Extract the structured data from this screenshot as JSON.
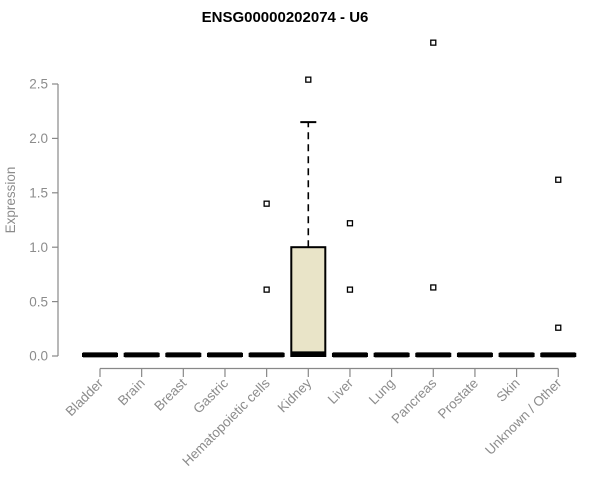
{
  "chart_data": {
    "type": "box",
    "title": "ENSG00000202074 - U6",
    "ylabel": "Expression",
    "ylim": [
      0,
      2.5
    ],
    "yticks": [
      {
        "v": 0.0,
        "label": "0.0"
      },
      {
        "v": 0.5,
        "label": "0.5"
      },
      {
        "v": 1.0,
        "label": "1.0"
      },
      {
        "v": 1.5,
        "label": "1.5"
      },
      {
        "v": 2.0,
        "label": "2.0"
      },
      {
        "v": 2.5,
        "label": "2.5"
      }
    ],
    "grid": false,
    "legend": "none",
    "categories": [
      {
        "label": "Bladder",
        "q1": 0,
        "median": 0.01,
        "q3": 0.02,
        "whisker_high": null,
        "outliers": []
      },
      {
        "label": "Brain",
        "q1": 0,
        "median": 0.01,
        "q3": 0.02,
        "whisker_high": null,
        "outliers": []
      },
      {
        "label": "Breast",
        "q1": 0,
        "median": 0.01,
        "q3": 0.02,
        "whisker_high": null,
        "outliers": []
      },
      {
        "label": "Gastric",
        "q1": 0,
        "median": 0.01,
        "q3": 0.02,
        "whisker_high": null,
        "outliers": []
      },
      {
        "label": "Hematopoietic cells",
        "q1": 0,
        "median": 0.01,
        "q3": 0.02,
        "whisker_high": null,
        "outliers": [
          0.61,
          1.4
        ]
      },
      {
        "label": "Kidney",
        "q1": 0,
        "median": 0.02,
        "q3": 1.0,
        "whisker_high": 2.15,
        "outliers": [
          2.54
        ]
      },
      {
        "label": "Liver",
        "q1": 0,
        "median": 0.01,
        "q3": 0.02,
        "whisker_high": null,
        "outliers": [
          0.61,
          1.22
        ]
      },
      {
        "label": "Lung",
        "q1": 0,
        "median": 0.01,
        "q3": 0.02,
        "whisker_high": null,
        "outliers": []
      },
      {
        "label": "Pancreas",
        "q1": 0,
        "median": 0.01,
        "q3": 0.02,
        "whisker_high": null,
        "outliers": [
          0.63,
          2.88
        ]
      },
      {
        "label": "Prostate",
        "q1": 0,
        "median": 0.01,
        "q3": 0.02,
        "whisker_high": null,
        "outliers": []
      },
      {
        "label": "Skin",
        "q1": 0,
        "median": 0.01,
        "q3": 0.02,
        "whisker_high": null,
        "outliers": []
      },
      {
        "label": "Unknown / Other",
        "q1": 0,
        "median": 0.01,
        "q3": 0.02,
        "whisker_high": null,
        "outliers": [
          0.26,
          1.62
        ]
      }
    ],
    "colors": {
      "box_fill": "#e9e4c8",
      "box_stroke": "#000000",
      "median": "#000000",
      "whisker": "#000000",
      "outlier_fill": "#ffffff",
      "outlier_stroke": "#000000",
      "axis": "#888888",
      "tick_label": "#8c8c8c",
      "title": "#000000"
    }
  }
}
